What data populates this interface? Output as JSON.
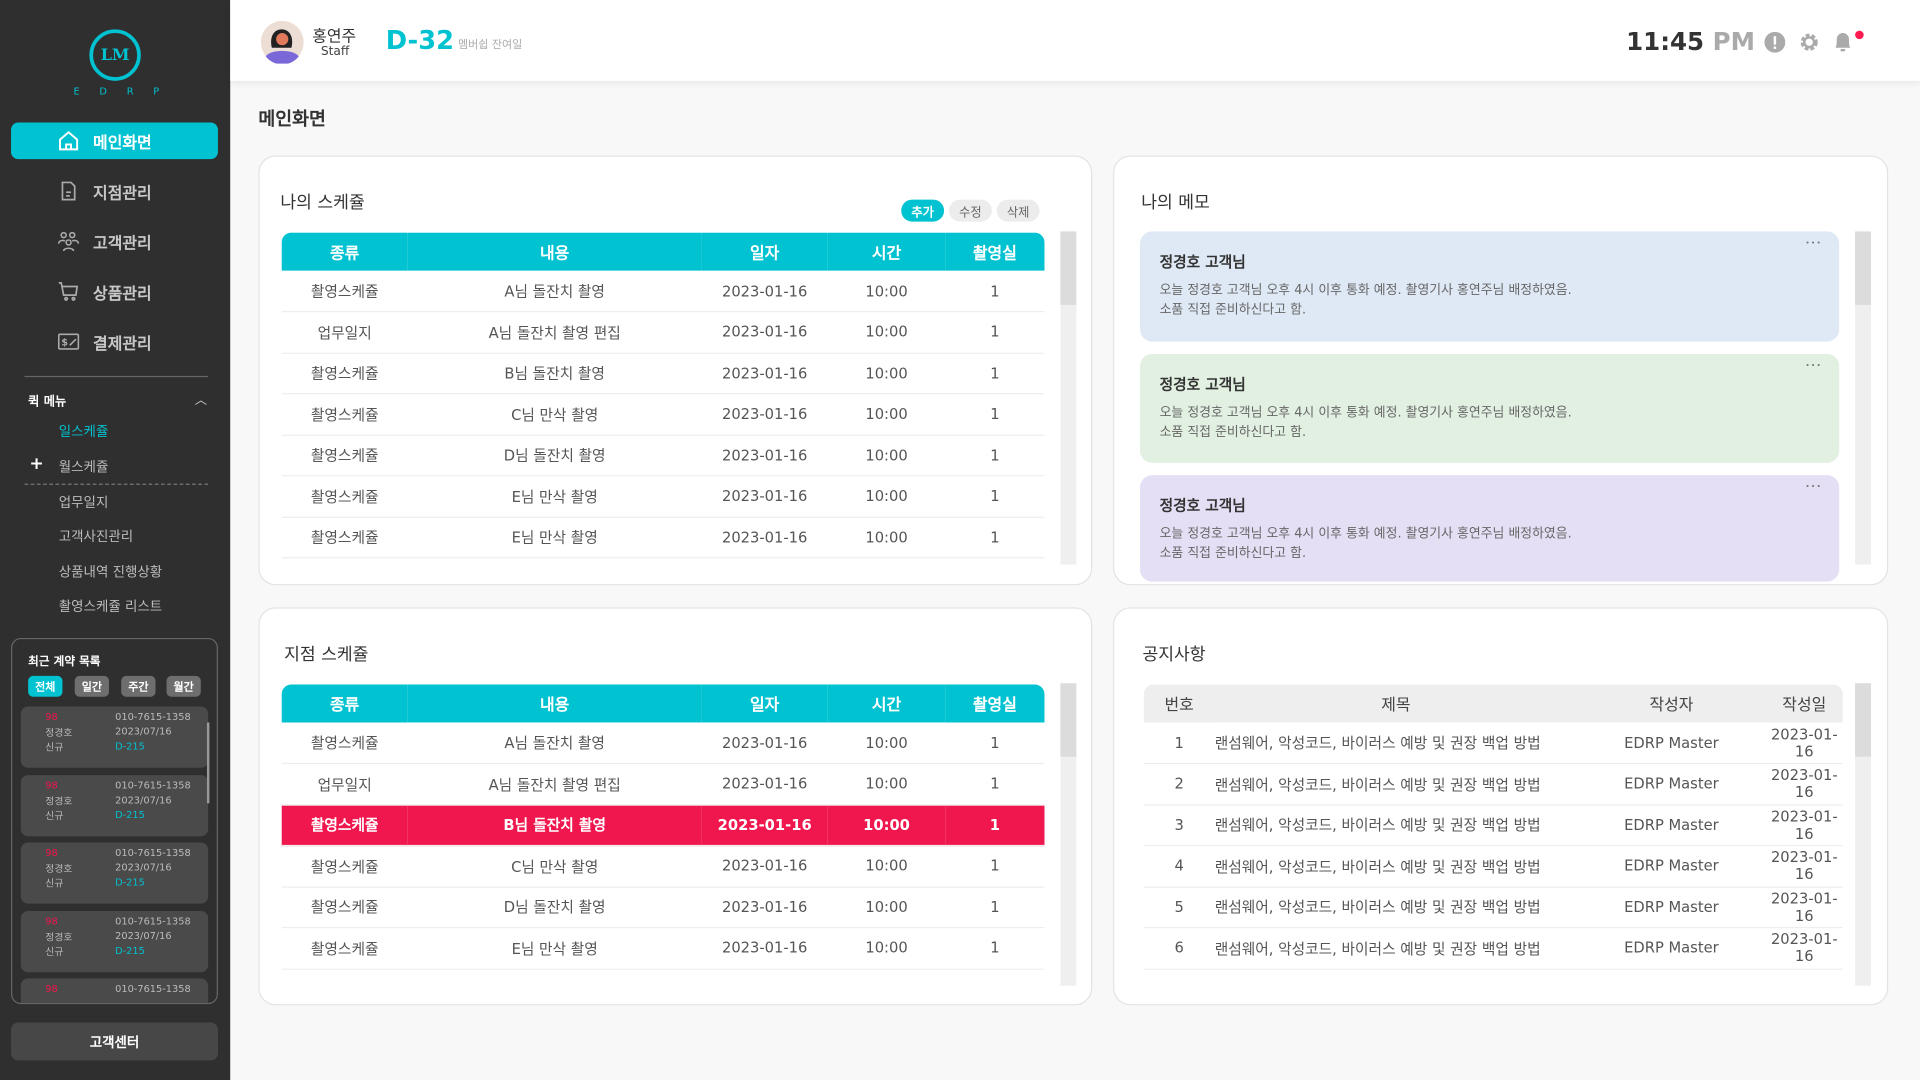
{
  "sidebar": {
    "logo": {
      "mark": "LM",
      "letters": [
        "E",
        "D",
        "R",
        "P"
      ]
    },
    "nav": [
      {
        "label": "메인화면",
        "icon": "home-icon",
        "active": true
      },
      {
        "label": "지점관리",
        "icon": "document-icon"
      },
      {
        "label": "고객관리",
        "icon": "users-icon"
      },
      {
        "label": "상품관리",
        "icon": "cart-icon"
      },
      {
        "label": "결제관리",
        "icon": "payment-icon"
      }
    ],
    "quick_menu": {
      "title": "퀵 메뉴",
      "items": [
        "일스케쥴",
        "월스케쥴",
        "업무일지",
        "고객사진관리",
        "상품내역 진행상황",
        "촬영스케쥴 리스트"
      ],
      "add_symbol": "+"
    },
    "recent": {
      "title": "최근 계약 목록",
      "chips": [
        "전체",
        "일간",
        "주간",
        "월간"
      ],
      "cards": [
        {
          "num": "98",
          "name": "정경호",
          "type": "신규",
          "phone": "010-7615-1358",
          "date": "2023/07/16",
          "dday": "D-215"
        },
        {
          "num": "98",
          "name": "정경호",
          "type": "신규",
          "phone": "010-7615-1358",
          "date": "2023/07/16",
          "dday": "D-215"
        },
        {
          "num": "98",
          "name": "정경호",
          "type": "신규",
          "phone": "010-7615-1358",
          "date": "2023/07/16",
          "dday": "D-215"
        },
        {
          "num": "98",
          "name": "정경호",
          "type": "신규",
          "phone": "010-7615-1358",
          "date": "2023/07/16",
          "dday": "D-215"
        },
        {
          "num": "98",
          "name": "",
          "type": "",
          "phone": "010-7615-1358",
          "date": "",
          "dday": ""
        }
      ]
    },
    "support_label": "고객센터"
  },
  "header": {
    "user_name": "홍연주",
    "user_role": "Staff",
    "dday": "D-32",
    "dday_label": "멤버쉽 잔여일",
    "time": "11:45",
    "ampm": "PM",
    "notification_color": "#ff1a4f"
  },
  "page_title": "메인화면",
  "my_schedule": {
    "title": "나의 스케쥴",
    "buttons": [
      "추가",
      "수정",
      "삭제"
    ],
    "columns": [
      "종류",
      "내용",
      "일자",
      "시간",
      "촬영실"
    ],
    "rows": [
      [
        "촬영스케쥴",
        "A님 돌잔치 촬영",
        "2023-01-16",
        "10:00",
        "1"
      ],
      [
        "업무일지",
        "A님 돌잔치 촬영 편집",
        "2023-01-16",
        "10:00",
        "1"
      ],
      [
        "촬영스케쥴",
        "B님 돌잔치 촬영",
        "2023-01-16",
        "10:00",
        "1"
      ],
      [
        "촬영스케쥴",
        "C님 만삭 촬영",
        "2023-01-16",
        "10:00",
        "1"
      ],
      [
        "촬영스케쥴",
        "D님 돌잔치 촬영",
        "2023-01-16",
        "10:00",
        "1"
      ],
      [
        "촬영스케쥴",
        "E님 만삭 촬영",
        "2023-01-16",
        "10:00",
        "1"
      ],
      [
        "촬영스케쥴",
        "E님 만삭 촬영",
        "2023-01-16",
        "10:00",
        "1"
      ]
    ]
  },
  "my_memo": {
    "title": "나의 메모",
    "memos": [
      {
        "title": "정경호 고객님",
        "line1": "오늘 정경호 고객님 오후 4시 이후 통화 예정. 촬영기사 홍연주님 배정하였음.",
        "line2": "소품 직접 준비하신다고 함.",
        "color": "#dfe9f5"
      },
      {
        "title": "정경호 고객님",
        "line1": "오늘 정경호 고객님 오후 4시 이후 통화 예정. 촬영기사 홍연주님 배정하였음.",
        "line2": "소품 직접 준비하신다고 함.",
        "color": "#e1f0e1"
      },
      {
        "title": "정경호 고객님",
        "line1": "오늘 정경호 고객님 오후 4시 이후 통화 예정. 촬영기사 홍연주님 배정하였음.",
        "line2": "소품 직접 준비하신다고 함.",
        "color": "#e5dff5"
      }
    ]
  },
  "branch_schedule": {
    "title": "지점 스케쥴",
    "columns": [
      "종류",
      "내용",
      "일자",
      "시간",
      "촬영실"
    ],
    "highlight_row": 2,
    "highlight_color": "#f0164e",
    "rows": [
      [
        "촬영스케쥴",
        "A님 돌잔치 촬영",
        "2023-01-16",
        "10:00",
        "1"
      ],
      [
        "업무일지",
        "A님 돌잔치 촬영 편집",
        "2023-01-16",
        "10:00",
        "1"
      ],
      [
        "촬영스케쥴",
        "B님 돌잔치 촬영",
        "2023-01-16",
        "10:00",
        "1"
      ],
      [
        "촬영스케쥴",
        "C님 만삭 촬영",
        "2023-01-16",
        "10:00",
        "1"
      ],
      [
        "촬영스케쥴",
        "D님 돌잔치 촬영",
        "2023-01-16",
        "10:00",
        "1"
      ],
      [
        "촬영스케쥴",
        "E님 만삭 촬영",
        "2023-01-16",
        "10:00",
        "1"
      ]
    ]
  },
  "notices": {
    "title": "공지사항",
    "columns": [
      "번호",
      "제목",
      "작성자",
      "작성일"
    ],
    "rows": [
      [
        "1",
        "랜섬웨어, 악성코드, 바이러스 예방 및 권장 백업 방법",
        "EDRP Master",
        "2023-01-16"
      ],
      [
        "2",
        "랜섬웨어, 악성코드, 바이러스 예방 및 권장 백업 방법",
        "EDRP Master",
        "2023-01-16"
      ],
      [
        "3",
        "랜섬웨어, 악성코드, 바이러스 예방 및 권장 백업 방법",
        "EDRP Master",
        "2023-01-16"
      ],
      [
        "4",
        "랜섬웨어, 악성코드, 바이러스 예방 및 권장 백업 방법",
        "EDRP Master",
        "2023-01-16"
      ],
      [
        "5",
        "랜섬웨어, 악성코드, 바이러스 예방 및 권장 백업 방법",
        "EDRP Master",
        "2023-01-16"
      ],
      [
        "6",
        "랜섬웨어, 악성코드, 바이러스 예방 및 권장 백업 방법",
        "EDRP Master",
        "2023-01-16"
      ]
    ]
  },
  "colors": {
    "accent": "#00c2d1",
    "sidebar": "#2f2f2f",
    "alert": "#f0164e"
  }
}
